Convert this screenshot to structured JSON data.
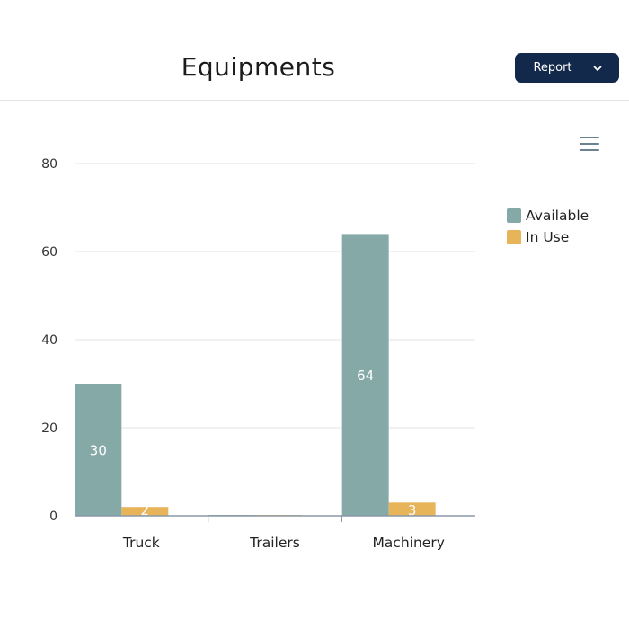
{
  "header": {
    "title": "Equipments",
    "report_button": "Report",
    "report_icon": "chevron-down-icon"
  },
  "toolbar": {
    "menu_icon": "hamburger-menu-icon"
  },
  "chart_data": {
    "type": "bar",
    "title": "",
    "xlabel": "",
    "ylabel": "",
    "categories": [
      "Truck",
      "Trailers",
      "Machinery"
    ],
    "series": [
      {
        "name": "Available",
        "values": [
          30,
          0,
          64
        ],
        "color": "#85a9a7"
      },
      {
        "name": "In Use",
        "values": [
          2,
          0,
          3
        ],
        "color": "#e8b45a"
      }
    ],
    "ylim": [
      0,
      80
    ],
    "yticks": [
      0,
      20,
      40,
      60,
      80
    ],
    "grid": true,
    "legend_position": "right"
  }
}
